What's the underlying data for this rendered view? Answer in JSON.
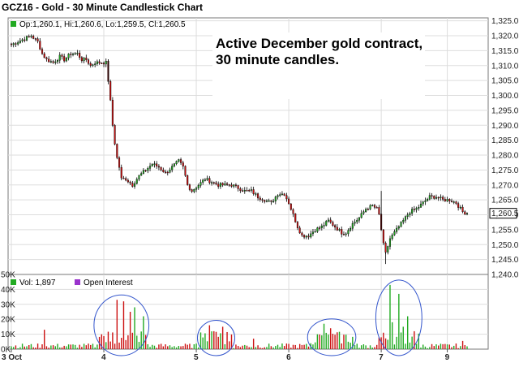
{
  "title": "GCZ16 - Gold - 30 Minute Candlestick Chart",
  "price_legend": "Op:1,260.1, Hi:1,260.6, Lo:1,259.5, Cl:1,260.5",
  "last_price_label": "1,260.5",
  "annotation": [
    "Active December gold contract,",
    "30 minute candles."
  ],
  "volume_legend": "Vol: 1,897",
  "open_interest_legend": "Open Interest",
  "colors": {
    "up": "#22aa22",
    "down": "#cc1111",
    "open_interest": "#9933cc",
    "circle": "#3355cc",
    "grid": "#dddddd"
  },
  "chart_data": [
    {
      "type": "candlestick",
      "y_ticks": [
        "1,240.0",
        "1,245.0",
        "1,250.0",
        "1,255.0",
        "1,260.0",
        "1,265.0",
        "1,270.0",
        "1,275.0",
        "1,280.0",
        "1,285.0",
        "1,290.0",
        "1,295.0",
        "1,300.0",
        "1,305.0",
        "1,310.0",
        "1,315.0",
        "1,320.0",
        "1,325.0"
      ],
      "ylim": [
        1240,
        1326
      ],
      "x_labels": [
        {
          "label": "3 Oct",
          "index": 0
        },
        {
          "label": "4",
          "index": 42
        },
        {
          "label": "5",
          "index": 84
        },
        {
          "label": "6",
          "index": 126
        },
        {
          "label": "7",
          "index": 168
        },
        {
          "label": "9",
          "index": 198
        }
      ],
      "anchors": [
        [
          0,
          1317
        ],
        [
          3,
          1318
        ],
        [
          6,
          1319
        ],
        [
          9,
          1320
        ],
        [
          12,
          1318
        ],
        [
          14,
          1314
        ],
        [
          16,
          1312
        ],
        [
          19,
          1311
        ],
        [
          22,
          1313
        ],
        [
          24,
          1312
        ],
        [
          27,
          1314
        ],
        [
          30,
          1314
        ],
        [
          32,
          1312
        ],
        [
          34,
          1312
        ],
        [
          36,
          1310
        ],
        [
          38,
          1311
        ],
        [
          41,
          1311
        ],
        [
          43,
          1311
        ],
        [
          44,
          1305
        ],
        [
          45,
          1298
        ],
        [
          46,
          1290
        ],
        [
          47,
          1284
        ],
        [
          48,
          1279
        ],
        [
          49,
          1276
        ],
        [
          50,
          1272
        ],
        [
          52,
          1272
        ],
        [
          55,
          1270
        ],
        [
          58,
          1273
        ],
        [
          61,
          1275
        ],
        [
          64,
          1277
        ],
        [
          67,
          1276
        ],
        [
          70,
          1274
        ],
        [
          73,
          1276
        ],
        [
          76,
          1278
        ],
        [
          78,
          1276
        ],
        [
          80,
          1270
        ],
        [
          82,
          1268
        ],
        [
          85,
          1270
        ],
        [
          88,
          1272
        ],
        [
          91,
          1271
        ],
        [
          94,
          1270
        ],
        [
          97,
          1270
        ],
        [
          100,
          1270
        ],
        [
          103,
          1269
        ],
        [
          106,
          1268
        ],
        [
          109,
          1268
        ],
        [
          112,
          1266
        ],
        [
          115,
          1265
        ],
        [
          118,
          1264
        ],
        [
          121,
          1267
        ],
        [
          124,
          1267
        ],
        [
          126,
          1264
        ],
        [
          128,
          1260
        ],
        [
          130,
          1256
        ],
        [
          132,
          1253
        ],
        [
          135,
          1253
        ],
        [
          138,
          1255
        ],
        [
          141,
          1256
        ],
        [
          144,
          1258
        ],
        [
          147,
          1256
        ],
        [
          150,
          1254
        ],
        [
          152,
          1254
        ],
        [
          155,
          1257
        ],
        [
          158,
          1259
        ],
        [
          161,
          1262
        ],
        [
          164,
          1263
        ],
        [
          166,
          1262
        ],
        [
          167,
          1260
        ],
        [
          168,
          1255
        ],
        [
          169,
          1250
        ],
        [
          170,
          1247
        ],
        [
          172,
          1252
        ],
        [
          175,
          1255
        ],
        [
          178,
          1258
        ],
        [
          181,
          1261
        ],
        [
          184,
          1262
        ],
        [
          187,
          1264
        ],
        [
          190,
          1266
        ],
        [
          193,
          1266
        ],
        [
          196,
          1265
        ],
        [
          199,
          1265
        ],
        [
          202,
          1264
        ],
        [
          205,
          1261
        ],
        [
          207,
          1260.5
        ]
      ],
      "last_close": 1260.5
    },
    {
      "type": "bar",
      "y_ticks": [
        "0K",
        "10K",
        "20K",
        "30K",
        "40K",
        "50K"
      ],
      "ylim": [
        0,
        50000
      ],
      "last_volume": 1897,
      "spikes": [
        {
          "index": 48,
          "value": 33000
        },
        {
          "index": 51,
          "value": 32000
        },
        {
          "index": 54,
          "value": 25000
        },
        {
          "index": 56,
          "value": 28000
        },
        {
          "index": 60,
          "value": 22000
        },
        {
          "index": 90,
          "value": 16000
        },
        {
          "index": 92,
          "value": 12000
        },
        {
          "index": 96,
          "value": 15000
        },
        {
          "index": 142,
          "value": 17000
        },
        {
          "index": 145,
          "value": 14000
        },
        {
          "index": 172,
          "value": 43000
        },
        {
          "index": 173,
          "value": 18000
        },
        {
          "index": 176,
          "value": 37000
        },
        {
          "index": 178,
          "value": 15000
        },
        {
          "index": 180,
          "value": 22000
        },
        {
          "index": 183,
          "value": 12000
        },
        {
          "index": 15,
          "value": 13000
        },
        {
          "index": 110,
          "value": 7000
        },
        {
          "index": 205,
          "value": 5500
        }
      ],
      "highlighted_ranges": [
        [
          39,
          61
        ],
        [
          86,
          100
        ],
        [
          136,
          155
        ],
        [
          167,
          185
        ]
      ]
    }
  ]
}
